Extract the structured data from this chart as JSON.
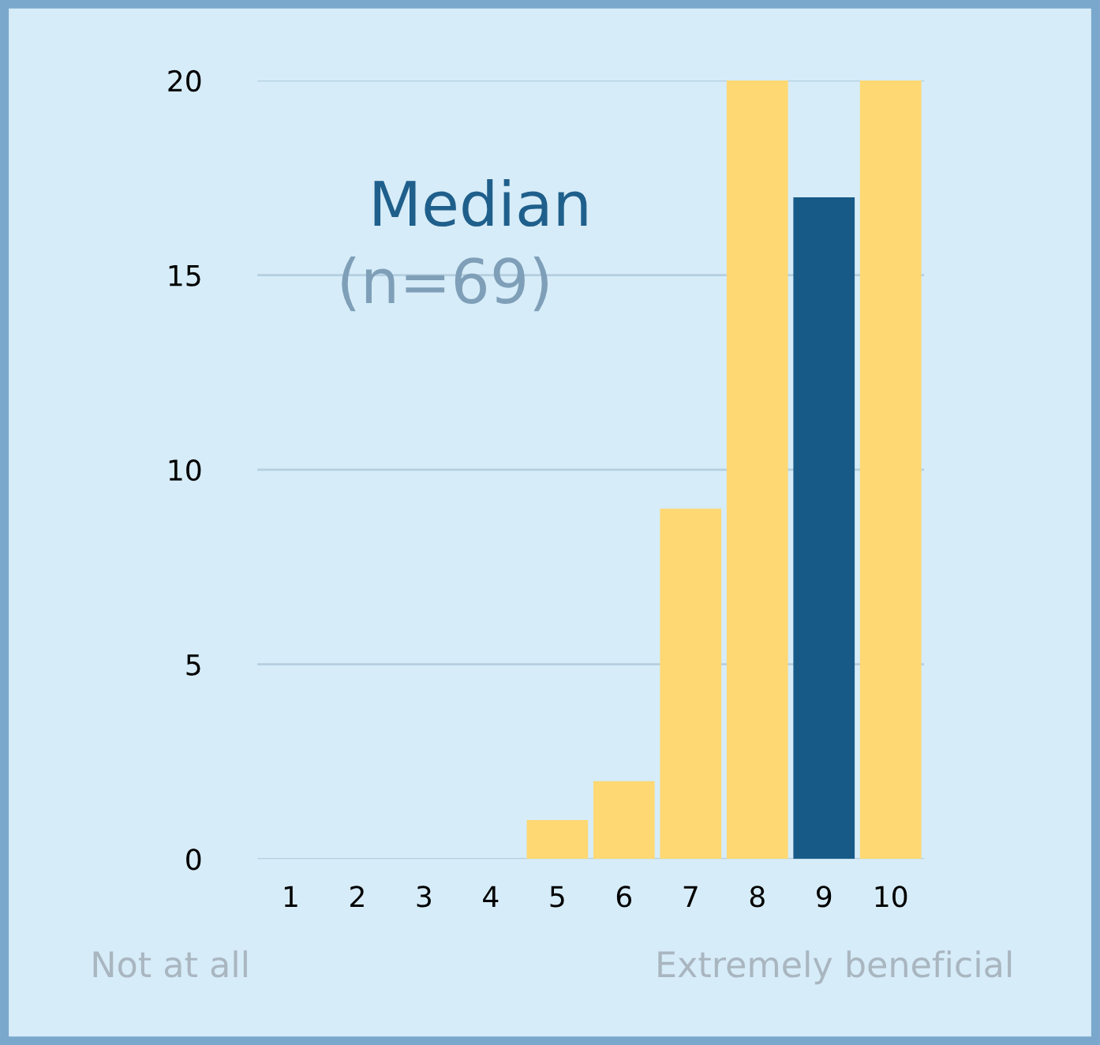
{
  "chart_data": {
    "type": "bar",
    "categories": [
      "1",
      "2",
      "3",
      "4",
      "5",
      "6",
      "7",
      "8",
      "9",
      "10"
    ],
    "values": [
      0,
      0,
      0,
      0,
      1,
      2,
      9,
      20,
      17,
      20
    ],
    "colors": [
      "#fdd873",
      "#fdd873",
      "#fdd873",
      "#fdd873",
      "#fdd873",
      "#fdd873",
      "#fdd873",
      "#fdd873",
      "#185a87",
      "#fdd873"
    ],
    "ylim": [
      0,
      20
    ],
    "yticks": [
      0,
      5,
      10,
      15,
      20
    ],
    "grid": "y",
    "annotations": [
      "Median",
      "(n=69)",
      "Not at all",
      "Extremely beneficial"
    ]
  }
}
